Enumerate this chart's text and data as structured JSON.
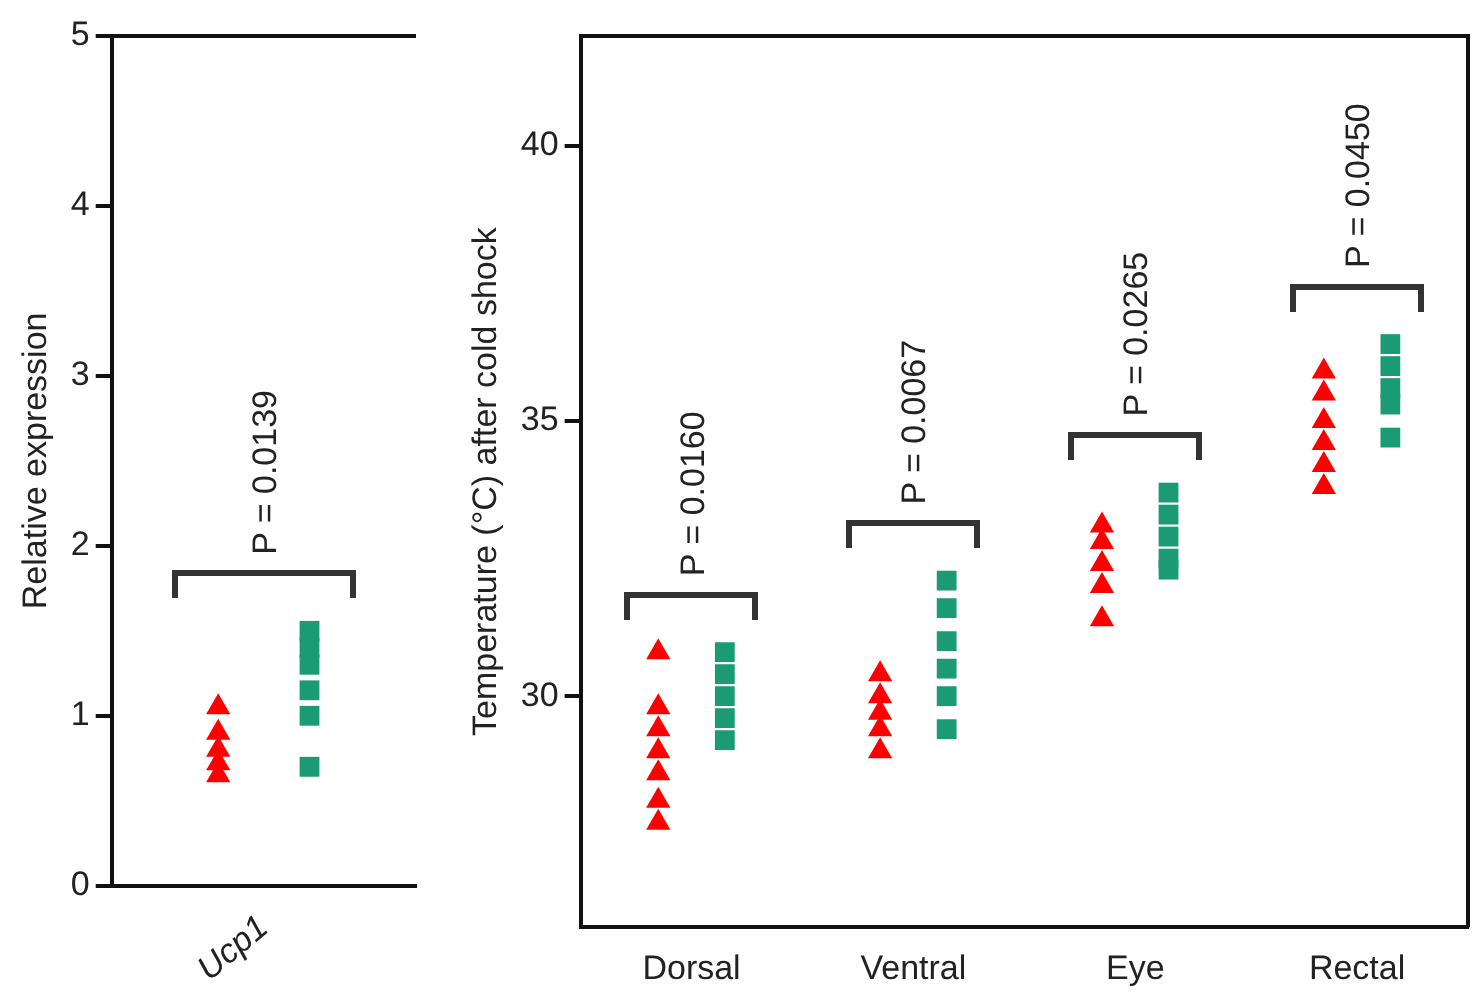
{
  "chart_data": [
    {
      "type": "scatter",
      "ylabel": "Relative expression",
      "categories": [
        "Ucp1"
      ],
      "ylim": [
        0,
        5
      ],
      "yticks": [
        0,
        1,
        2,
        3,
        4,
        5
      ],
      "grid": false,
      "legend": false,
      "series": [
        {
          "color": "#ff0000",
          "marker": "triangle",
          "x": [
            "Ucp1",
            "Ucp1",
            "Ucp1",
            "Ucp1",
            "Ucp1"
          ],
          "values": [
            1.05,
            0.9,
            0.8,
            0.72,
            0.65
          ]
        },
        {
          "color": "#1a9b73",
          "marker": "square",
          "x": [
            "Ucp1",
            "Ucp1",
            "Ucp1",
            "Ucp1",
            "Ucp1",
            "Ucp1"
          ],
          "values": [
            1.5,
            1.4,
            1.3,
            1.15,
            1.0,
            0.7
          ]
        }
      ],
      "annotations": [
        "P = 0.0139"
      ]
    },
    {
      "type": "scatter",
      "ylabel": "Temperature (°C) after cold shock",
      "categories": [
        "Dorsal",
        "Ventral",
        "Eye",
        "Rectal"
      ],
      "ylim": [
        25.8,
        42
      ],
      "yticks": [
        30,
        35,
        40
      ],
      "grid": false,
      "legend": false,
      "series": [
        {
          "color": "#ff0000",
          "marker": "triangle",
          "x": [
            "Dorsal",
            "Dorsal",
            "Dorsal",
            "Dorsal",
            "Dorsal",
            "Dorsal",
            "Dorsal",
            "Ventral",
            "Ventral",
            "Ventral",
            "Ventral",
            "Ventral",
            "Eye",
            "Eye",
            "Eye",
            "Eye",
            "Eye",
            "Rectal",
            "Rectal",
            "Rectal",
            "Rectal",
            "Rectal",
            "Rectal"
          ],
          "values": [
            30.8,
            29.8,
            29.4,
            29.0,
            28.6,
            28.1,
            27.7,
            30.4,
            30.0,
            29.7,
            29.4,
            29.0,
            33.1,
            32.8,
            32.4,
            32.0,
            31.4,
            35.9,
            35.5,
            35.0,
            34.6,
            34.2,
            33.8
          ]
        },
        {
          "color": "#1a9b73",
          "marker": "square",
          "x": [
            "Dorsal",
            "Dorsal",
            "Dorsal",
            "Dorsal",
            "Dorsal",
            "Ventral",
            "Ventral",
            "Ventral",
            "Ventral",
            "Ventral",
            "Ventral",
            "Eye",
            "Eye",
            "Eye",
            "Eye",
            "Eye",
            "Rectal",
            "Rectal",
            "Rectal",
            "Rectal",
            "Rectal"
          ],
          "values": [
            30.8,
            30.4,
            30.0,
            29.6,
            29.2,
            32.1,
            31.6,
            31.0,
            30.5,
            30.0,
            29.4,
            33.7,
            33.3,
            32.9,
            32.5,
            32.3,
            36.4,
            36.0,
            35.6,
            35.3,
            34.7
          ]
        }
      ],
      "annotations": [
        "P = 0.0160",
        "P = 0.0067",
        "P = 0.0265",
        "P = 0.0450"
      ]
    }
  ]
}
